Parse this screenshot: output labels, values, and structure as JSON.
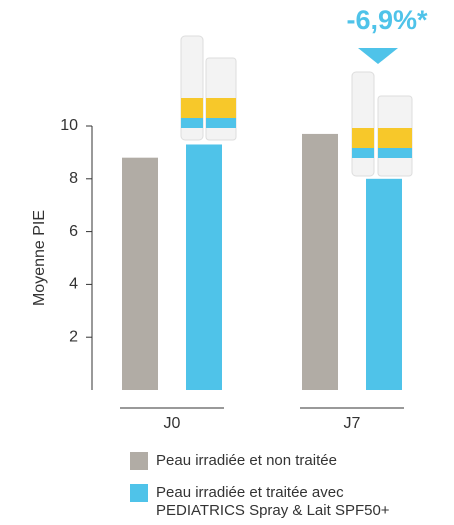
{
  "chart_data": {
    "type": "bar",
    "y_label": "Moyenne PIE",
    "annotation": "-6,9%*",
    "categories": [
      "J0",
      "J7"
    ],
    "series": [
      {
        "name": "Peau irradiée et non traitée",
        "color": "#b1aca5",
        "values": [
          8.8,
          9.7
        ]
      },
      {
        "name": "Peau irradiée et traitée avec PEDIATRICS Spray & Lait SPF50+",
        "color": "#4fc3e9",
        "values": [
          9.3,
          8.0
        ]
      }
    ],
    "ylim": [
      0,
      10
    ],
    "yticks": [
      2,
      4,
      6,
      8,
      10
    ],
    "annotation_color": "#4fc3e9"
  }
}
